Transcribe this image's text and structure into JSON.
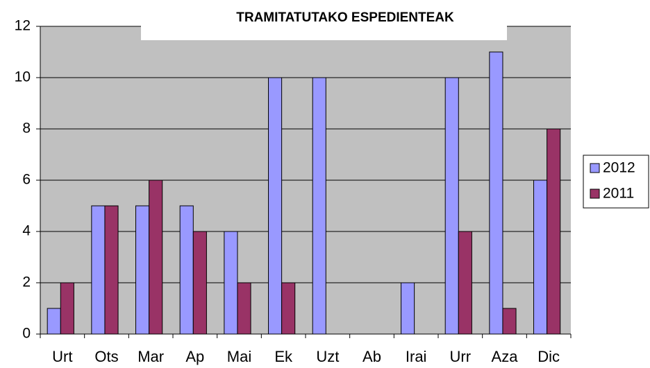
{
  "chart_data": {
    "type": "bar",
    "title": "TRAMITATUTAKO ESPEDIENTEAK",
    "categories": [
      "Urt",
      "Ots",
      "Mar",
      "Ap",
      "Mai",
      "Ek",
      "Uzt",
      "Ab",
      "Irai",
      "Urr",
      "Aza",
      "Dic"
    ],
    "series": [
      {
        "name": "2012",
        "color": "#9999ff",
        "values": [
          1,
          5,
          5,
          5,
          4,
          10,
          10,
          0,
          2,
          10,
          11,
          6
        ]
      },
      {
        "name": "2011",
        "color": "#993366",
        "values": [
          2,
          5,
          6,
          4,
          2,
          2,
          0,
          0,
          0,
          4,
          1,
          8
        ]
      }
    ],
    "ylim": [
      0,
      12
    ],
    "yticks": [
      0,
      2,
      4,
      6,
      8,
      10,
      12
    ],
    "grid": true,
    "legend": "right"
  }
}
